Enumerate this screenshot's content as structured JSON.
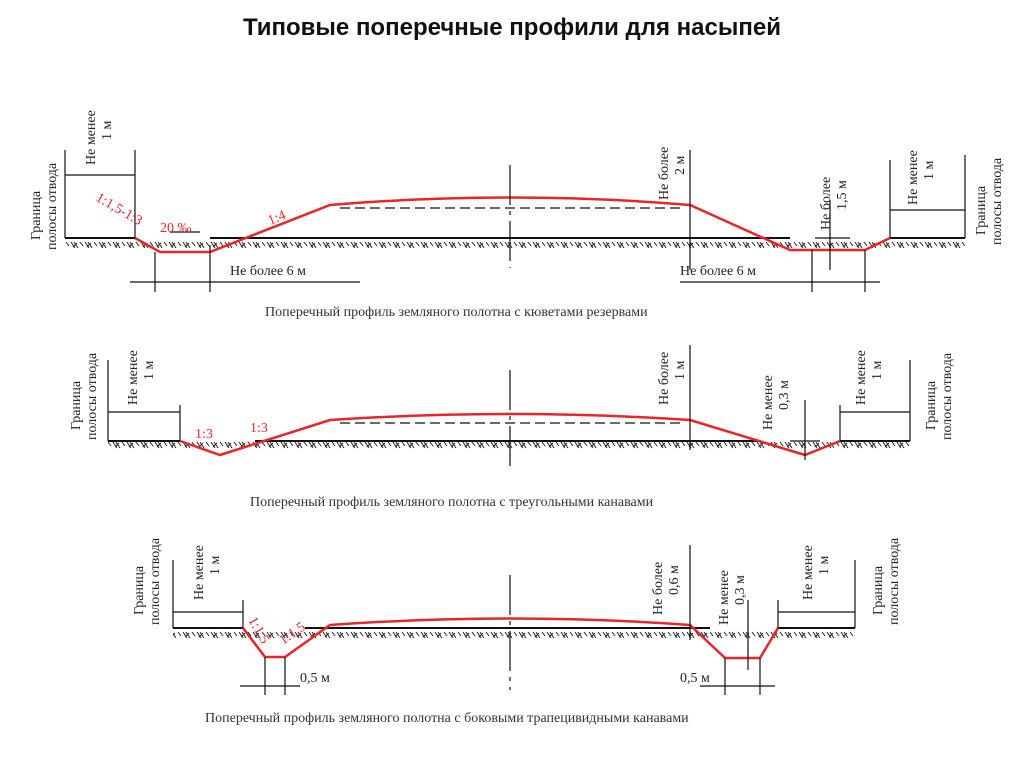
{
  "title": "Типовые поперечные профили для насыпей",
  "colors": {
    "embankment": "#e8262a",
    "lines": "#111111"
  },
  "boundary": {
    "line1": "Граница",
    "line2": "полосы отвода"
  },
  "profiles": [
    {
      "caption": "Поперечный профиль земляного полотна с кюветами резервами",
      "left_min": {
        "line1": "Не менее",
        "line2": "1 м"
      },
      "right_min": {
        "line1": "Не менее",
        "line2": "1 м"
      },
      "slope_outer": "1:1,5-1:3",
      "gradient": "20 ‰",
      "slope_inner": "1:4",
      "width_left": "Не более 6 м",
      "width_right": "Не более 6 м",
      "height_max": {
        "line1": "Не более",
        "line2": "2 м"
      },
      "depth_max": {
        "line1": "Не более",
        "line2": "1,5 м"
      }
    },
    {
      "caption": "Поперечный профиль земляного полотна с треугольными канавами",
      "left_min": {
        "line1": "Не менее",
        "line2": "1 м"
      },
      "right_min": {
        "line1": "Не менее",
        "line2": "1 м"
      },
      "slope_outer": "1:3",
      "slope_inner": "1:3",
      "height_max": {
        "line1": "Не более",
        "line2": "1 м"
      },
      "depth_min": {
        "line1": "Не менее",
        "line2": "0,3 м"
      }
    },
    {
      "caption": "Поперечный профиль земляного полотна с боковыми трапецивидными канавами",
      "left_min": {
        "line1": "Не менее",
        "line2": "1 м"
      },
      "right_min": {
        "line1": "Не менее",
        "line2": "1 м"
      },
      "slope_outer": "1:1,5",
      "slope_inner": "1:1,5",
      "bottom_left": "0,5 м",
      "bottom_right": "0,5 м",
      "height_max": {
        "line1": "Не более",
        "line2": "0,6 м"
      },
      "depth_min": {
        "line1": "Не менее",
        "line2": "0,3 м"
      }
    }
  ]
}
